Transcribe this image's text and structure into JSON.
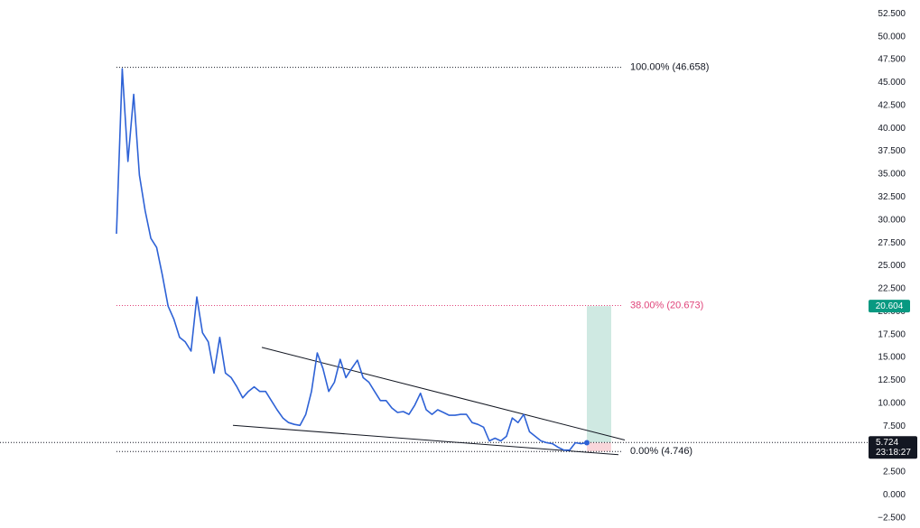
{
  "chart_data": {
    "type": "line",
    "series": [
      {
        "name": null,
        "color": "#2e62d6",
        "values": [
          28.5,
          46.5,
          36.4,
          43.7,
          34.9,
          31,
          28,
          27,
          24,
          20.6,
          19.2,
          17.2,
          16.7,
          15.7,
          21.6,
          17.7,
          16.7,
          13.3,
          17.2,
          13.3,
          12.8,
          11.8,
          10.6,
          11.3,
          11.8,
          11.3,
          11.3,
          10.3,
          9.3,
          8.4,
          7.9,
          7.7,
          7.6,
          8.8,
          11.3,
          15.5,
          13.8,
          11.3,
          12.3,
          14.8,
          12.8,
          13.8,
          14.7,
          12.8,
          12.3,
          11.3,
          10.3,
          10.3,
          9.5,
          9,
          9.1,
          8.8,
          9.8,
          11.1,
          9.3,
          8.8,
          9.3,
          9,
          8.7,
          8.7,
          8.8,
          8.8,
          7.9,
          7.7,
          7.4,
          5.9,
          6.2,
          5.9,
          6.4,
          8.4,
          7.9,
          8.8,
          6.9,
          6.4,
          5.9,
          5.7,
          5.6,
          5.2,
          4.9,
          4.9,
          5.7,
          5.6,
          5.7
        ]
      }
    ],
    "ylim": [
      -3.6,
      54
    ],
    "yticks": [
      {
        "value": 52.5,
        "label": "52.500"
      },
      {
        "value": 50,
        "label": "50.000"
      },
      {
        "value": 47.5,
        "label": "47.500"
      },
      {
        "value": 45,
        "label": "45.000"
      },
      {
        "value": 42.5,
        "label": "42.500"
      },
      {
        "value": 40,
        "label": "40.000"
      },
      {
        "value": 37.5,
        "label": "37.500"
      },
      {
        "value": 35,
        "label": "35.000"
      },
      {
        "value": 32.5,
        "label": "32.500"
      },
      {
        "value": 30,
        "label": "30.000"
      },
      {
        "value": 27.5,
        "label": "27.500"
      },
      {
        "value": 25,
        "label": "25.000"
      },
      {
        "value": 22.5,
        "label": "22.500"
      },
      {
        "value": 20,
        "label": "20.000"
      },
      {
        "value": 17.5,
        "label": "17.500"
      },
      {
        "value": 15,
        "label": "15.000"
      },
      {
        "value": 12.5,
        "label": "12.500"
      },
      {
        "value": 10,
        "label": "10.000"
      },
      {
        "value": 7.5,
        "label": "7.500"
      },
      {
        "value": 5,
        "label": "5.000"
      },
      {
        "value": 2.5,
        "label": "2.500"
      },
      {
        "value": 0,
        "label": "0.000"
      },
      {
        "value": -2.5,
        "label": "−2.500"
      }
    ],
    "fib_levels": [
      {
        "label": "100.00% (46.658)",
        "value": 46.658,
        "color": "#131722"
      },
      {
        "label": "38.00% (20.673)",
        "value": 20.673,
        "color": "#e0447a"
      },
      {
        "label": "0.00% (4.746)",
        "value": 4.746,
        "color": "#131722"
      }
    ],
    "trendlines": [
      [
        16.1,
        6.0
      ],
      [
        7.6,
        4.4
      ]
    ],
    "current_price": {
      "value": 5.724,
      "label": "5.724"
    },
    "countdown": "23:18:27",
    "target_price": {
      "value": 20.604,
      "label": "20.604"
    }
  }
}
